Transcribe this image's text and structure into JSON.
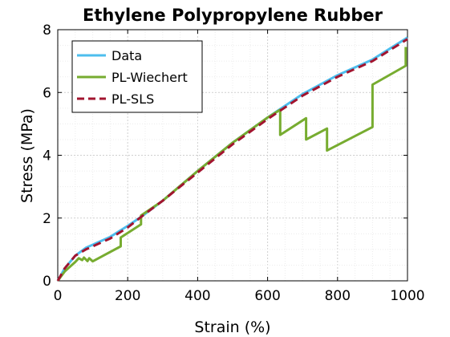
{
  "chart_data": {
    "type": "line",
    "title": "Ethylene Polypropylene Rubber",
    "xlabel": "Strain (%)",
    "ylabel": "Stress (MPa)",
    "xlim": [
      0,
      1000
    ],
    "ylim": [
      0,
      8
    ],
    "xticks": [
      "0",
      "200",
      "400",
      "600",
      "800",
      "1000"
    ],
    "yticks": [
      "0",
      "2",
      "4",
      "6",
      "8"
    ],
    "grid": true,
    "legend_position": "top-left",
    "series": [
      {
        "name": "Data",
        "color": "#4dbeee",
        "style": "solid",
        "x": [
          0,
          20,
          50,
          80,
          100,
          150,
          200,
          240,
          300,
          400,
          500,
          600,
          640,
          700,
          800,
          900,
          1000
        ],
        "y": [
          0,
          0.4,
          0.8,
          1.05,
          1.15,
          1.4,
          1.75,
          2.05,
          2.55,
          3.5,
          4.4,
          5.2,
          5.5,
          5.95,
          6.55,
          7.05,
          7.75
        ]
      },
      {
        "name": "PL-Wiechert",
        "color": "#77ac30",
        "style": "solid",
        "x": [
          0,
          20,
          50,
          60,
          70,
          75,
          85,
          90,
          100,
          180,
          180,
          238,
          238,
          300,
          400,
          500,
          600,
          636,
          636,
          710,
          710,
          770,
          770,
          900,
          900,
          995,
          995
        ],
        "y": [
          0,
          0.3,
          0.6,
          0.72,
          0.66,
          0.74,
          0.63,
          0.72,
          0.62,
          1.1,
          1.38,
          1.8,
          2.08,
          2.55,
          3.5,
          4.4,
          5.2,
          5.45,
          4.65,
          5.18,
          4.5,
          4.85,
          4.15,
          4.9,
          6.25,
          6.85,
          7.45
        ]
      },
      {
        "name": "PL-SLS",
        "color": "#a2142f",
        "style": "dashed",
        "x": [
          0,
          20,
          50,
          80,
          100,
          150,
          200,
          240,
          300,
          400,
          500,
          600,
          640,
          700,
          800,
          900,
          1000
        ],
        "y": [
          0,
          0.4,
          0.8,
          1.0,
          1.1,
          1.35,
          1.7,
          2.05,
          2.55,
          3.45,
          4.35,
          5.15,
          5.45,
          5.9,
          6.5,
          7.0,
          7.7
        ]
      }
    ]
  }
}
